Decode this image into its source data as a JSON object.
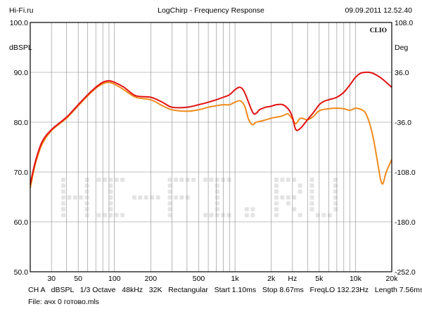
{
  "header": {
    "site": "Hi-Fi.ru",
    "title": "LogChirp - Frequency Response",
    "datetime": "09.09.2011 12.52.40"
  },
  "watermark": "HI-FI.RU",
  "brand": "CLIO",
  "footer": {
    "params": "CH A   dBSPL   1/3 Octave   48kHz   32K   Rectangular   Start 1.10ms   Stop 8.67ms   FreqLO 132.23Hz   Length 7.56ms",
    "file": "File: ачх 0 готово.mls"
  },
  "chart_data": {
    "type": "line",
    "xscale": "log",
    "xlim": [
      20,
      20000
    ],
    "ylim": [
      50,
      100
    ],
    "ylabel": "dBSPL",
    "y2label": "Deg",
    "y2lim": [
      -252,
      108
    ],
    "grid": true,
    "x_ticks": [
      {
        "v": 30,
        "label": "30"
      },
      {
        "v": 50,
        "label": "50"
      },
      {
        "v": 100,
        "label": "100"
      },
      {
        "v": 200,
        "label": "200"
      },
      {
        "v": 500,
        "label": "500"
      },
      {
        "v": 1000,
        "label": "1k"
      },
      {
        "v": 2000,
        "label": "2k"
      },
      {
        "v": 3000,
        "label": "Hz"
      },
      {
        "v": 5000,
        "label": "5k"
      },
      {
        "v": 10000,
        "label": "10k"
      },
      {
        "v": 20000,
        "label": "20k"
      }
    ],
    "y_ticks": [
      {
        "v": 100,
        "label": "100.0"
      },
      {
        "v": 90,
        "label": "90.0"
      },
      {
        "v": 80,
        "label": "80.0"
      },
      {
        "v": 70,
        "label": "70.0"
      },
      {
        "v": 60,
        "label": "60.0"
      },
      {
        "v": 50,
        "label": "50.0"
      }
    ],
    "y2_ticks": [
      {
        "v": 108,
        "label": "108.0"
      },
      {
        "v": 36,
        "label": "36.0"
      },
      {
        "v": -36,
        "label": "-36.0"
      },
      {
        "v": -108,
        "label": "-108.0"
      },
      {
        "v": -180,
        "label": "-180.0"
      },
      {
        "v": -252,
        "label": "-252.0"
      }
    ],
    "series": [
      {
        "color": "#e31010",
        "points": [
          [
            20,
            67.5
          ],
          [
            22,
            72
          ],
          [
            25,
            76
          ],
          [
            30,
            78.5
          ],
          [
            40,
            81
          ],
          [
            50,
            83.5
          ],
          [
            60,
            85.5
          ],
          [
            70,
            87
          ],
          [
            80,
            88
          ],
          [
            90,
            88.3
          ],
          [
            100,
            88
          ],
          [
            120,
            87
          ],
          [
            150,
            85.3
          ],
          [
            200,
            85
          ],
          [
            250,
            84
          ],
          [
            300,
            83
          ],
          [
            400,
            83
          ],
          [
            500,
            83.5
          ],
          [
            600,
            84
          ],
          [
            700,
            84.5
          ],
          [
            800,
            85
          ],
          [
            900,
            85.5
          ],
          [
            1000,
            86.5
          ],
          [
            1100,
            87
          ],
          [
            1200,
            86
          ],
          [
            1400,
            82
          ],
          [
            1500,
            81.8
          ],
          [
            1600,
            82.5
          ],
          [
            1800,
            83
          ],
          [
            2000,
            83.2
          ],
          [
            2200,
            83.5
          ],
          [
            2500,
            83.5
          ],
          [
            2800,
            82.5
          ],
          [
            3000,
            81
          ],
          [
            3200,
            78.5
          ],
          [
            3500,
            78.8
          ],
          [
            4000,
            80.5
          ],
          [
            4500,
            82
          ],
          [
            5000,
            83.5
          ],
          [
            5500,
            84.2
          ],
          [
            6000,
            84.5
          ],
          [
            7000,
            85
          ],
          [
            8000,
            86
          ],
          [
            9000,
            87.5
          ],
          [
            10000,
            89
          ],
          [
            11000,
            89.8
          ],
          [
            12000,
            90
          ],
          [
            13000,
            90
          ],
          [
            14000,
            89.8
          ],
          [
            16000,
            89
          ],
          [
            18000,
            88
          ],
          [
            20000,
            87
          ]
        ]
      },
      {
        "color": "#f08a1a",
        "points": [
          [
            20,
            66.8
          ],
          [
            22,
            71.5
          ],
          [
            25,
            75.5
          ],
          [
            30,
            78.3
          ],
          [
            40,
            80.8
          ],
          [
            50,
            83.3
          ],
          [
            60,
            85.3
          ],
          [
            70,
            86.8
          ],
          [
            80,
            87.7
          ],
          [
            90,
            88
          ],
          [
            100,
            87.6
          ],
          [
            120,
            86.5
          ],
          [
            150,
            85
          ],
          [
            200,
            84.5
          ],
          [
            250,
            83.3
          ],
          [
            300,
            82.5
          ],
          [
            400,
            82.2
          ],
          [
            500,
            82.5
          ],
          [
            600,
            83
          ],
          [
            700,
            83.3
          ],
          [
            800,
            83.5
          ],
          [
            900,
            83.5
          ],
          [
            1000,
            84
          ],
          [
            1100,
            84.3
          ],
          [
            1200,
            83.3
          ],
          [
            1300,
            80.5
          ],
          [
            1400,
            79.5
          ],
          [
            1500,
            80
          ],
          [
            1700,
            80.3
          ],
          [
            2000,
            80.8
          ],
          [
            2200,
            81
          ],
          [
            2500,
            81.3
          ],
          [
            2700,
            81.7
          ],
          [
            2800,
            81.5
          ],
          [
            3000,
            80.6
          ],
          [
            3200,
            79.7
          ],
          [
            3500,
            80.8
          ],
          [
            4000,
            80.5
          ],
          [
            4500,
            81.2
          ],
          [
            5000,
            82.3
          ],
          [
            6000,
            82.7
          ],
          [
            7000,
            82.8
          ],
          [
            8000,
            82.7
          ],
          [
            9000,
            82.4
          ],
          [
            10000,
            82.8
          ],
          [
            11000,
            82.6
          ],
          [
            12000,
            82
          ],
          [
            13000,
            80
          ],
          [
            14000,
            77
          ],
          [
            15000,
            73
          ],
          [
            16000,
            69
          ],
          [
            16500,
            67.8
          ],
          [
            17000,
            67.8
          ],
          [
            18000,
            70
          ],
          [
            20000,
            72.5
          ]
        ]
      }
    ]
  }
}
